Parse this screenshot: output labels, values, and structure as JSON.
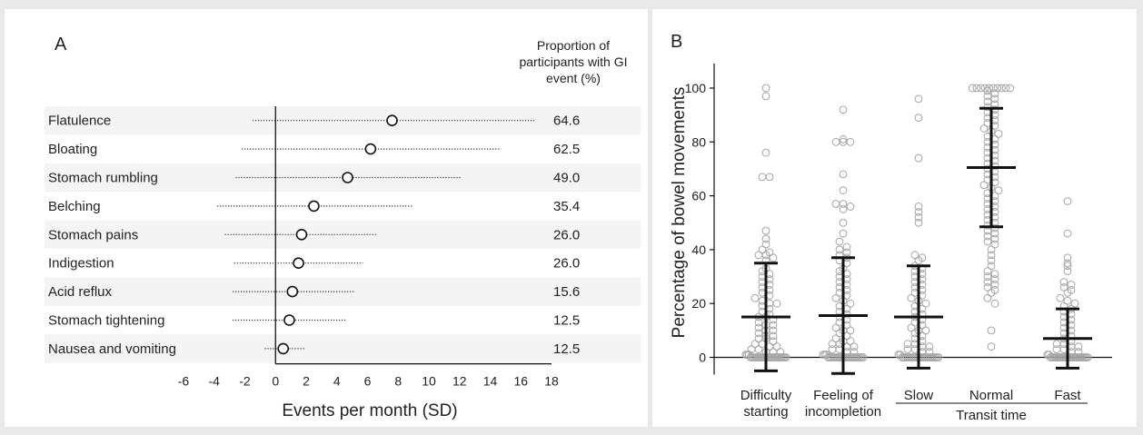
{
  "panel_a": {
    "letter": "A",
    "header_lines": [
      "Proportion of",
      "participants with GI",
      "event (%)"
    ],
    "xlabel": "Events per month (SD)"
  },
  "panel_b": {
    "letter": "B",
    "ylabel": "Percentage of bowel movements",
    "group_label": "Transit time"
  },
  "chart_data": [
    {
      "type": "scatter",
      "subtype": "dot-and-whisker",
      "title": "",
      "xlabel": "Events per month (SD)",
      "xlim": [
        -6,
        18
      ],
      "xticks": [
        -6,
        -4,
        -2,
        0,
        2,
        4,
        6,
        8,
        10,
        12,
        14,
        16,
        18
      ],
      "rows": [
        {
          "label": "Flatulence",
          "mean": 7.6,
          "low": -1.5,
          "high": 16.9,
          "pct": "64.6"
        },
        {
          "label": "Bloating",
          "mean": 6.2,
          "low": -2.2,
          "high": 14.7,
          "pct": "62.5"
        },
        {
          "label": "Stomach rumbling",
          "mean": 4.7,
          "low": -2.6,
          "high": 12.1,
          "pct": "49.0"
        },
        {
          "label": "Belching",
          "mean": 2.5,
          "low": -3.8,
          "high": 8.9,
          "pct": "35.4"
        },
        {
          "label": "Stomach pains",
          "mean": 1.7,
          "low": -3.3,
          "high": 6.6,
          "pct": "26.0"
        },
        {
          "label": "Indigestion",
          "mean": 1.5,
          "low": -2.7,
          "high": 5.7,
          "pct": "26.0"
        },
        {
          "label": "Acid reflux",
          "mean": 1.1,
          "low": -2.8,
          "high": 5.1,
          "pct": "15.6"
        },
        {
          "label": "Stomach tightening",
          "mean": 0.9,
          "low": -2.8,
          "high": 4.6,
          "pct": "12.5"
        },
        {
          "label": "Nausea and vomiting",
          "mean": 0.5,
          "low": -0.7,
          "high": 1.9,
          "pct": "12.5"
        }
      ]
    },
    {
      "type": "scatter",
      "subtype": "strip-with-mean-sd",
      "title": "",
      "ylabel": "Percentage of bowel movements",
      "ylim": [
        -5,
        105
      ],
      "yticks": [
        0,
        20,
        40,
        60,
        80,
        100
      ],
      "group_label": "Transit time",
      "categories": [
        {
          "label_lines": [
            "Difficulty",
            "starting"
          ],
          "mean": 15,
          "sd_low": -5,
          "sd_high": 35,
          "points": [
            100,
            97,
            76,
            67,
            67,
            47,
            44,
            42,
            40,
            39,
            38,
            38,
            37,
            36,
            33,
            32,
            31,
            30,
            29,
            28,
            27,
            26,
            25,
            24,
            23,
            22,
            21,
            20,
            20,
            19,
            18,
            17,
            16,
            15,
            15,
            14,
            13,
            12,
            12,
            11,
            10,
            10,
            9,
            8,
            8,
            7,
            7,
            6,
            5,
            5,
            4,
            4,
            3,
            3,
            2,
            2,
            2,
            1,
            1,
            1,
            0,
            0,
            0,
            0,
            0,
            0,
            0,
            0,
            0,
            0,
            0,
            0,
            0,
            0,
            0,
            0,
            0,
            0,
            0,
            0,
            0,
            0,
            0,
            0
          ]
        },
        {
          "label_lines": [
            "Feeling of",
            "incompletion"
          ],
          "mean": 15.5,
          "sd_low": -6,
          "sd_high": 37,
          "points": [
            92,
            81,
            80,
            80,
            80,
            68,
            62,
            57,
            57,
            56,
            55,
            50,
            46,
            43,
            41,
            40,
            39,
            38,
            37,
            36,
            35,
            33,
            32,
            31,
            30,
            29,
            28,
            27,
            26,
            25,
            24,
            23,
            22,
            21,
            20,
            19,
            18,
            17,
            16,
            15,
            14,
            13,
            12,
            11,
            10,
            10,
            9,
            8,
            7,
            6,
            6,
            5,
            5,
            4,
            4,
            3,
            3,
            2,
            2,
            1,
            1,
            1,
            0,
            0,
            0,
            0,
            0,
            0,
            0,
            0,
            0,
            0,
            0,
            0,
            0,
            0,
            0,
            0,
            0,
            0,
            0,
            0,
            0,
            0
          ]
        },
        {
          "label_lines": [
            "Slow"
          ],
          "mean": 15,
          "sd_low": -4,
          "sd_high": 34,
          "points": [
            96,
            89,
            74,
            56,
            54,
            52,
            50,
            38,
            37,
            36,
            34,
            33,
            32,
            31,
            30,
            29,
            28,
            27,
            26,
            25,
            24,
            23,
            22,
            21,
            20,
            19,
            18,
            17,
            16,
            15,
            14,
            13,
            12,
            11,
            10,
            10,
            9,
            8,
            7,
            6,
            5,
            5,
            4,
            4,
            3,
            3,
            2,
            2,
            1,
            1,
            0,
            0,
            0,
            0,
            0,
            0,
            0,
            0,
            0,
            0,
            0,
            0,
            0,
            0,
            0,
            0,
            0,
            0,
            0,
            0,
            0,
            0
          ]
        },
        {
          "label_lines": [
            "Normal"
          ],
          "mean": 70.5,
          "sd_low": 48.5,
          "sd_high": 92.5,
          "points": [
            100,
            100,
            100,
            100,
            100,
            100,
            100,
            100,
            100,
            100,
            99,
            98,
            97,
            96,
            95,
            94,
            93,
            92,
            91,
            90,
            89,
            88,
            87,
            86,
            85,
            84,
            83,
            82,
            81,
            80,
            79,
            78,
            77,
            76,
            75,
            74,
            73,
            72,
            71,
            70,
            69,
            68,
            67,
            66,
            65,
            64,
            63,
            62,
            61,
            60,
            59,
            58,
            57,
            56,
            55,
            54,
            53,
            52,
            51,
            50,
            49,
            48,
            47,
            46,
            45,
            44,
            43,
            42,
            40,
            38,
            36,
            34,
            32,
            31,
            30,
            29,
            28,
            27,
            26,
            25,
            24,
            22,
            20,
            10,
            4
          ]
        },
        {
          "label_lines": [
            "Fast"
          ],
          "mean": 7,
          "sd_low": -4,
          "sd_high": 18,
          "points": [
            58,
            46,
            37,
            35,
            34,
            32,
            28,
            27,
            26,
            25,
            24,
            22,
            21,
            20,
            19,
            18,
            17,
            16,
            15,
            14,
            13,
            12,
            11,
            10,
            9,
            8,
            7,
            6,
            5,
            5,
            4,
            4,
            3,
            3,
            2,
            2,
            1,
            1,
            0,
            0,
            0,
            0,
            0,
            0,
            0,
            0,
            0,
            0,
            0,
            0,
            0,
            0,
            0,
            0,
            0,
            0,
            0,
            0,
            0,
            0,
            0,
            0,
            0,
            0
          ]
        }
      ]
    }
  ]
}
